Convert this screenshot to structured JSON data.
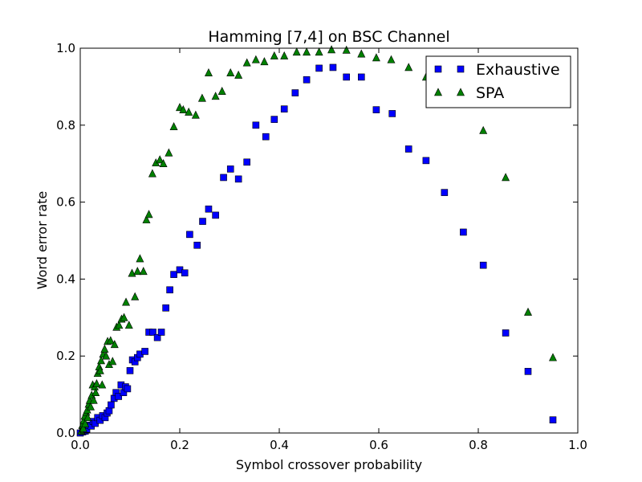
{
  "chart_data": {
    "type": "scatter",
    "title": "Hamming [7,4] on BSC Channel",
    "xlabel": "Symbol crossover probability",
    "ylabel": "Word error rate",
    "xlim": [
      0.0,
      1.0
    ],
    "ylim": [
      0.0,
      1.0
    ],
    "xticks": [
      "0.0",
      "0.2",
      "0.4",
      "0.6",
      "0.8",
      "1.0"
    ],
    "yticks": [
      "0.0",
      "0.2",
      "0.4",
      "0.6",
      "0.8",
      "1.0"
    ],
    "grid": false,
    "legend_position": "top-right",
    "series": [
      {
        "name": "Exhaustive",
        "marker": "square",
        "color": "#0000ff",
        "points": [
          [
            0.0,
            0.0
          ],
          [
            0.005,
            0.003
          ],
          [
            0.01,
            0.005
          ],
          [
            0.013,
            0.01
          ],
          [
            0.018,
            0.02
          ],
          [
            0.022,
            0.018
          ],
          [
            0.026,
            0.03
          ],
          [
            0.03,
            0.025
          ],
          [
            0.035,
            0.04
          ],
          [
            0.04,
            0.033
          ],
          [
            0.045,
            0.045
          ],
          [
            0.05,
            0.04
          ],
          [
            0.054,
            0.052
          ],
          [
            0.058,
            0.058
          ],
          [
            0.062,
            0.073
          ],
          [
            0.068,
            0.09
          ],
          [
            0.072,
            0.105
          ],
          [
            0.077,
            0.095
          ],
          [
            0.082,
            0.125
          ],
          [
            0.087,
            0.105
          ],
          [
            0.091,
            0.12
          ],
          [
            0.095,
            0.115
          ],
          [
            0.1,
            0.162
          ],
          [
            0.105,
            0.19
          ],
          [
            0.11,
            0.185
          ],
          [
            0.115,
            0.196
          ],
          [
            0.12,
            0.205
          ],
          [
            0.13,
            0.212
          ],
          [
            0.138,
            0.262
          ],
          [
            0.146,
            0.262
          ],
          [
            0.155,
            0.248
          ],
          [
            0.163,
            0.262
          ],
          [
            0.172,
            0.325
          ],
          [
            0.18,
            0.372
          ],
          [
            0.188,
            0.412
          ],
          [
            0.2,
            0.424
          ],
          [
            0.21,
            0.416
          ],
          [
            0.22,
            0.516
          ],
          [
            0.235,
            0.488
          ],
          [
            0.246,
            0.55
          ],
          [
            0.258,
            0.582
          ],
          [
            0.272,
            0.566
          ],
          [
            0.288,
            0.664
          ],
          [
            0.302,
            0.686
          ],
          [
            0.318,
            0.66
          ],
          [
            0.335,
            0.704
          ],
          [
            0.353,
            0.8
          ],
          [
            0.373,
            0.77
          ],
          [
            0.39,
            0.815
          ],
          [
            0.41,
            0.842
          ],
          [
            0.432,
            0.884
          ],
          [
            0.455,
            0.918
          ],
          [
            0.48,
            0.948
          ],
          [
            0.508,
            0.95
          ],
          [
            0.535,
            0.925
          ],
          [
            0.565,
            0.925
          ],
          [
            0.595,
            0.84
          ],
          [
            0.627,
            0.83
          ],
          [
            0.66,
            0.738
          ],
          [
            0.695,
            0.708
          ],
          [
            0.732,
            0.625
          ],
          [
            0.77,
            0.522
          ],
          [
            0.81,
            0.436
          ],
          [
            0.855,
            0.26
          ],
          [
            0.9,
            0.16
          ],
          [
            0.95,
            0.034
          ]
        ]
      },
      {
        "name": "SPA",
        "marker": "triangle",
        "color": "#008000",
        "points": [
          [
            0.002,
            0.005
          ],
          [
            0.004,
            0.02
          ],
          [
            0.006,
            0.012
          ],
          [
            0.007,
            0.032
          ],
          [
            0.009,
            0.044
          ],
          [
            0.01,
            0.024
          ],
          [
            0.012,
            0.054
          ],
          [
            0.014,
            0.06
          ],
          [
            0.015,
            0.04
          ],
          [
            0.017,
            0.075
          ],
          [
            0.019,
            0.085
          ],
          [
            0.021,
            0.068
          ],
          [
            0.023,
            0.098
          ],
          [
            0.025,
            0.125
          ],
          [
            0.027,
            0.085
          ],
          [
            0.029,
            0.12
          ],
          [
            0.031,
            0.105
          ],
          [
            0.033,
            0.128
          ],
          [
            0.035,
            0.155
          ],
          [
            0.038,
            0.172
          ],
          [
            0.04,
            0.162
          ],
          [
            0.042,
            0.188
          ],
          [
            0.044,
            0.125
          ],
          [
            0.046,
            0.205
          ],
          [
            0.049,
            0.218
          ],
          [
            0.052,
            0.2
          ],
          [
            0.055,
            0.238
          ],
          [
            0.058,
            0.178
          ],
          [
            0.061,
            0.24
          ],
          [
            0.065,
            0.186
          ],
          [
            0.069,
            0.23
          ],
          [
            0.073,
            0.275
          ],
          [
            0.078,
            0.28
          ],
          [
            0.083,
            0.296
          ],
          [
            0.088,
            0.3
          ],
          [
            0.092,
            0.34
          ],
          [
            0.098,
            0.28
          ],
          [
            0.104,
            0.415
          ],
          [
            0.11,
            0.354
          ],
          [
            0.115,
            0.42
          ],
          [
            0.12,
            0.453
          ],
          [
            0.127,
            0.42
          ],
          [
            0.133,
            0.554
          ],
          [
            0.138,
            0.568
          ],
          [
            0.145,
            0.674
          ],
          [
            0.152,
            0.702
          ],
          [
            0.16,
            0.71
          ],
          [
            0.167,
            0.7
          ],
          [
            0.178,
            0.728
          ],
          [
            0.188,
            0.796
          ],
          [
            0.2,
            0.846
          ],
          [
            0.207,
            0.84
          ],
          [
            0.218,
            0.834
          ],
          [
            0.232,
            0.826
          ],
          [
            0.245,
            0.87
          ],
          [
            0.258,
            0.936
          ],
          [
            0.272,
            0.875
          ],
          [
            0.285,
            0.888
          ],
          [
            0.302,
            0.936
          ],
          [
            0.318,
            0.93
          ],
          [
            0.335,
            0.962
          ],
          [
            0.353,
            0.97
          ],
          [
            0.37,
            0.965
          ],
          [
            0.39,
            0.98
          ],
          [
            0.41,
            0.98
          ],
          [
            0.435,
            0.99
          ],
          [
            0.455,
            0.99
          ],
          [
            0.48,
            0.99
          ],
          [
            0.505,
            0.996
          ],
          [
            0.535,
            0.995
          ],
          [
            0.565,
            0.985
          ],
          [
            0.595,
            0.975
          ],
          [
            0.625,
            0.97
          ],
          [
            0.66,
            0.95
          ],
          [
            0.695,
            0.925
          ],
          [
            0.81,
            0.786
          ],
          [
            0.855,
            0.664
          ],
          [
            0.9,
            0.314
          ],
          [
            0.95,
            0.196
          ]
        ]
      }
    ]
  }
}
